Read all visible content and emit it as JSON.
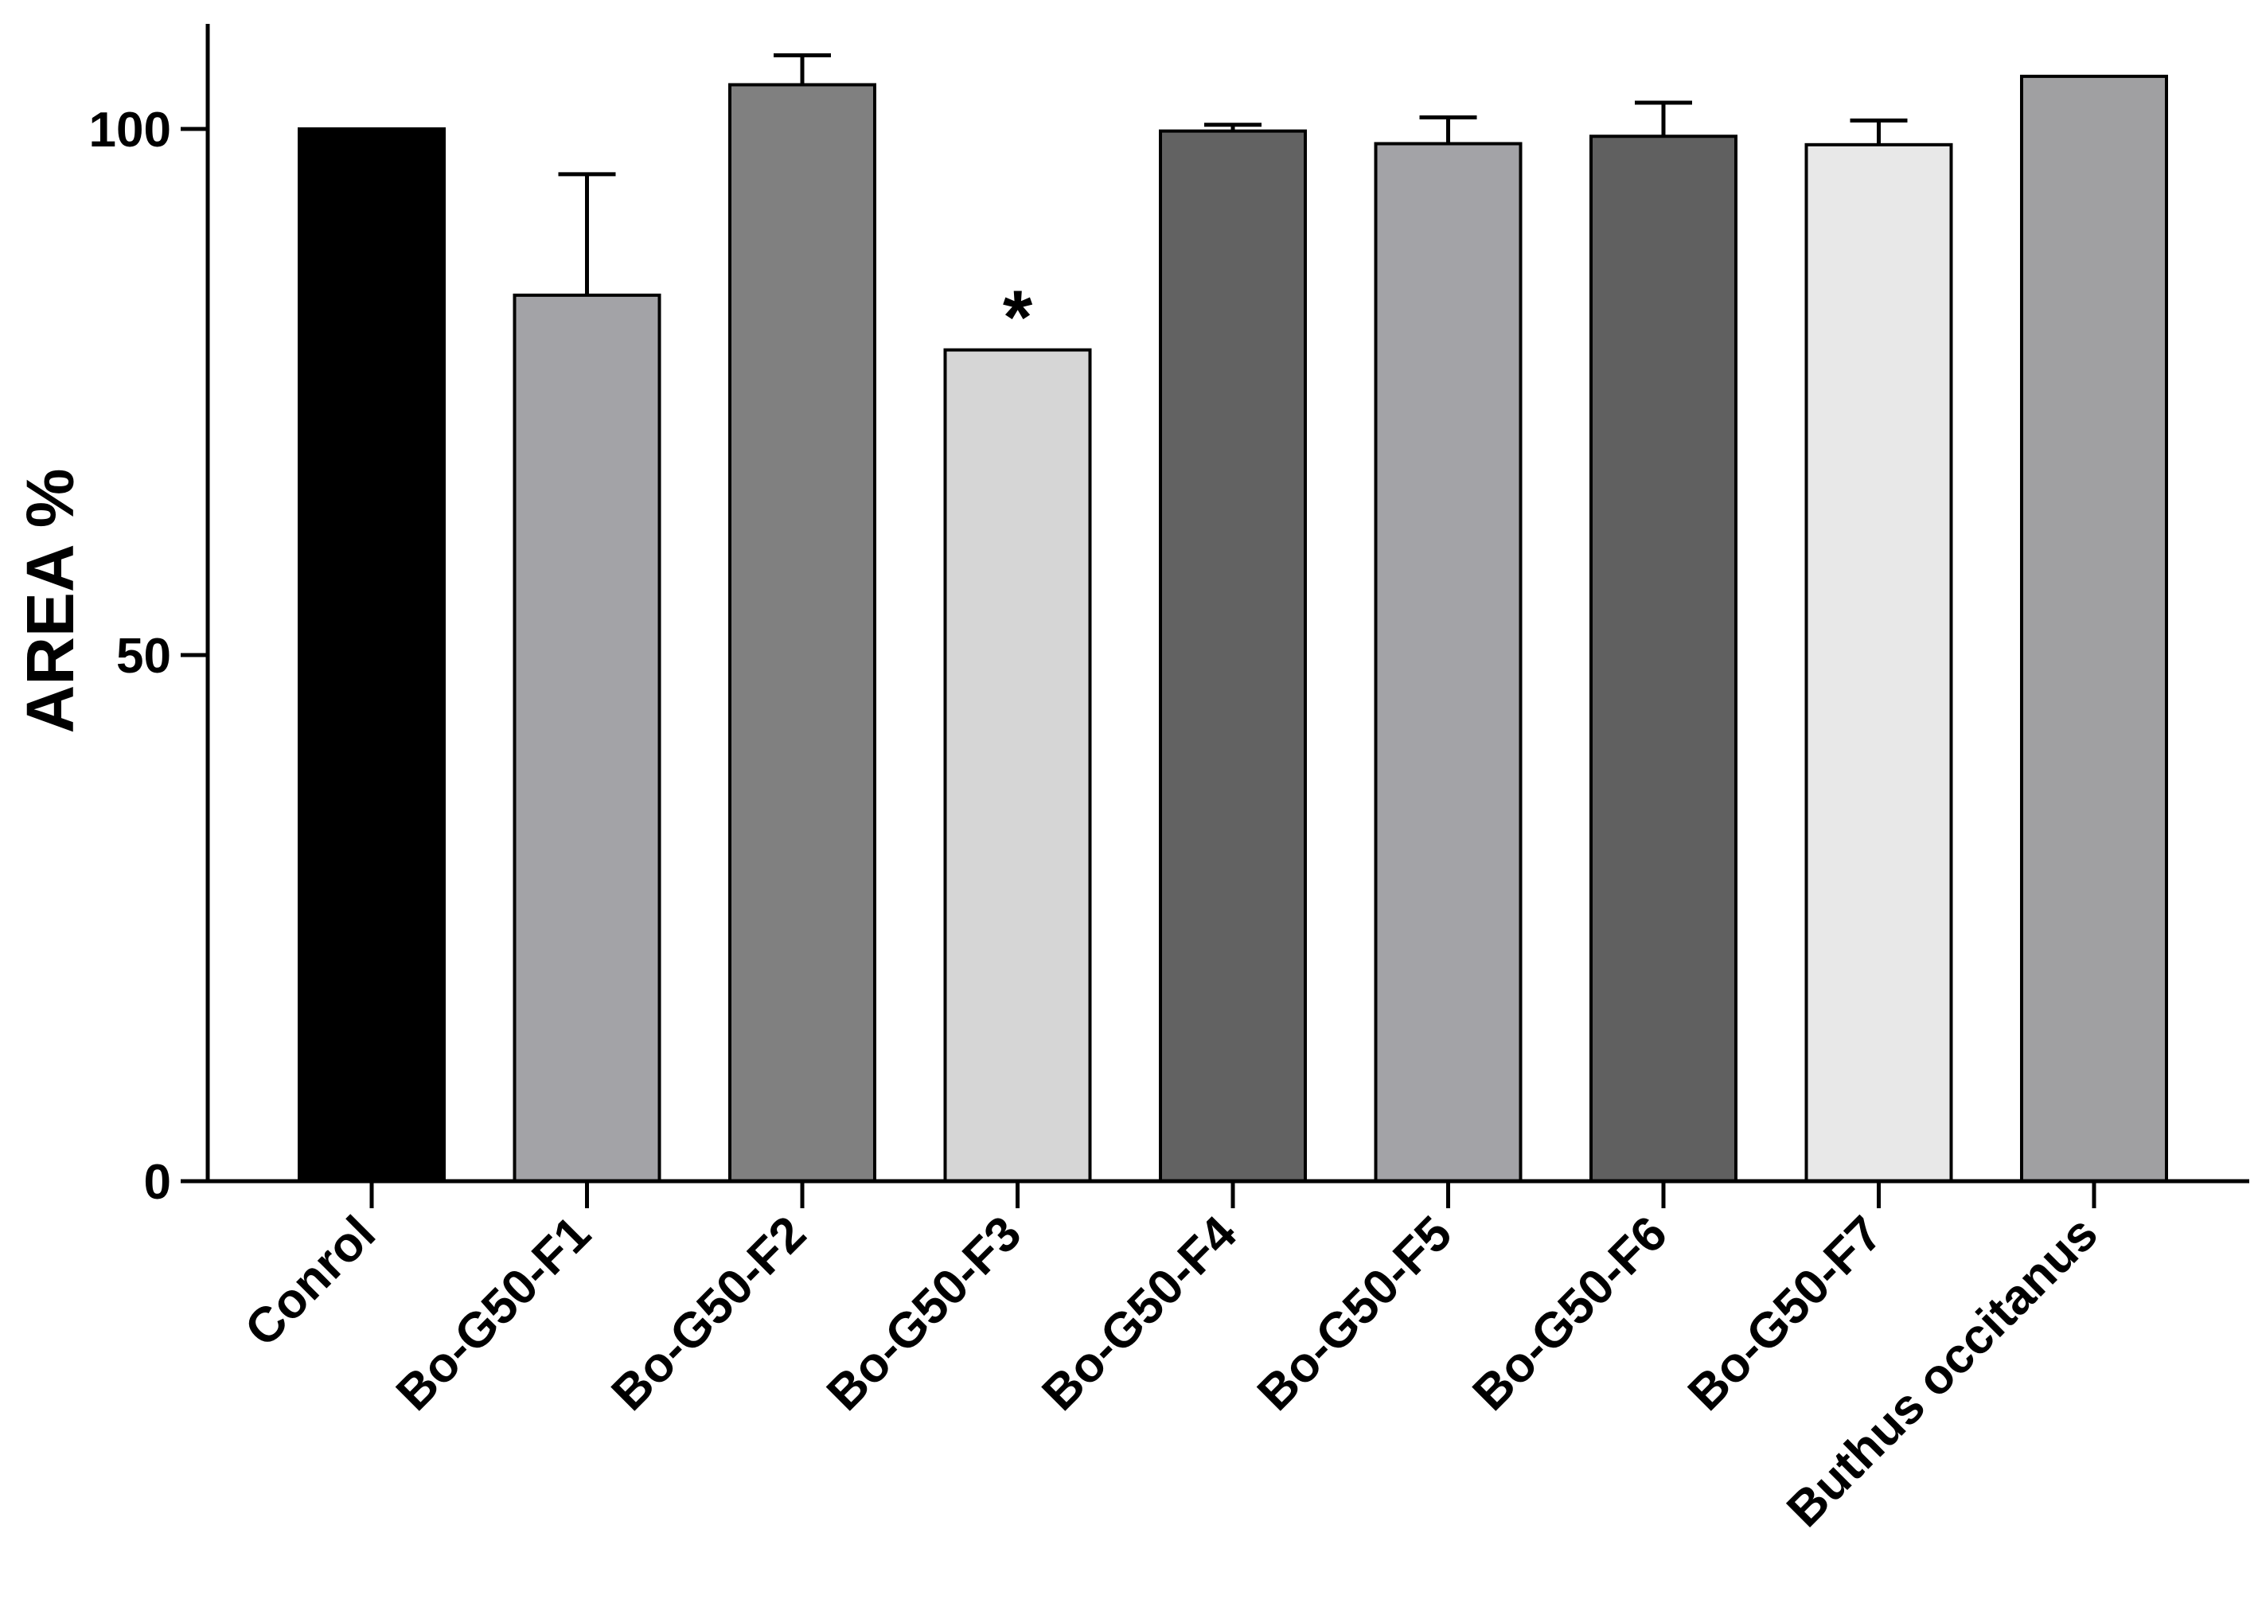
{
  "chart_data": {
    "type": "bar",
    "title": "",
    "xlabel": "",
    "ylabel": "AREA %",
    "ylim": [
      0,
      110
    ],
    "yticks": [
      0,
      50,
      100
    ],
    "grid": false,
    "legend": "none",
    "categories": [
      "Conrol",
      "Bo-G50-F1",
      "Bo-G50-F2",
      "Bo-G50-F3",
      "Bo-G50-F4",
      "Bo-G50-F5",
      "Bo-G50-F6",
      "Bo-G50-F7",
      "Buthus occitanus"
    ],
    "values": [
      100,
      84.2,
      104.2,
      79.0,
      99.8,
      98.6,
      99.3,
      98.5,
      105.0
    ],
    "errors": [
      0,
      11.5,
      2.8,
      0,
      0.6,
      2.5,
      3.2,
      2.3,
      0
    ],
    "colors": [
      "#000000",
      "#a3a3a7",
      "#808080",
      "#d6d6d6",
      "#626262",
      "#a3a3a7",
      "#606060",
      "#e8e8e8",
      "#a0a0a2"
    ],
    "annotations": [
      {
        "category": "Bo-G50-F3",
        "text": "*"
      }
    ]
  }
}
